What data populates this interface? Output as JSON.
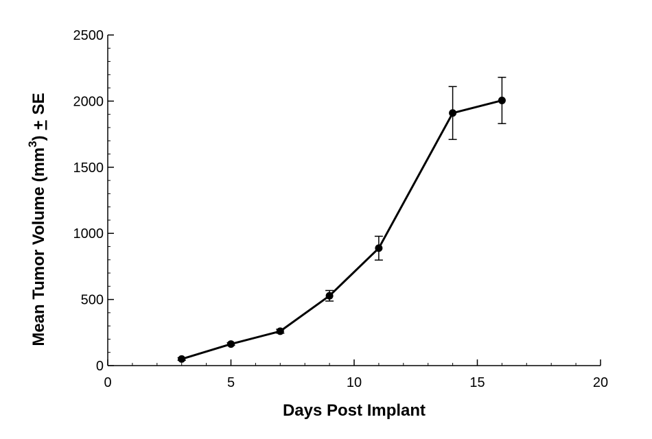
{
  "chart_data": {
    "type": "line",
    "title": "",
    "xlabel": "Days Post Implant",
    "ylabel": {
      "prefix": "Mean Tumor Volume (mm",
      "superscript": "3",
      "close": ")",
      "plusminus": "+",
      "suffix": "SE"
    },
    "xlim": [
      0,
      20
    ],
    "ylim": [
      0,
      2500
    ],
    "x_major_ticks": [
      0,
      5,
      10,
      15,
      20
    ],
    "x_tick_labels": [
      "0",
      "5",
      "10",
      "15",
      "20"
    ],
    "y_major_ticks": [
      0,
      500,
      1000,
      1500,
      2000,
      2500
    ],
    "y_tick_labels": [
      "0",
      "500",
      "1000",
      "1500",
      "2000",
      "2500"
    ],
    "x_minor_step": 1,
    "y_minor_step": 100,
    "grid": false,
    "legend": "none",
    "series": [
      {
        "color": "#000000",
        "x": [
          3,
          5,
          7,
          9,
          11,
          14,
          16
        ],
        "y": [
          50,
          163,
          260,
          528,
          888,
          1910,
          2005
        ],
        "error": [
          10,
          10,
          15,
          40,
          90,
          200,
          175
        ]
      }
    ]
  }
}
